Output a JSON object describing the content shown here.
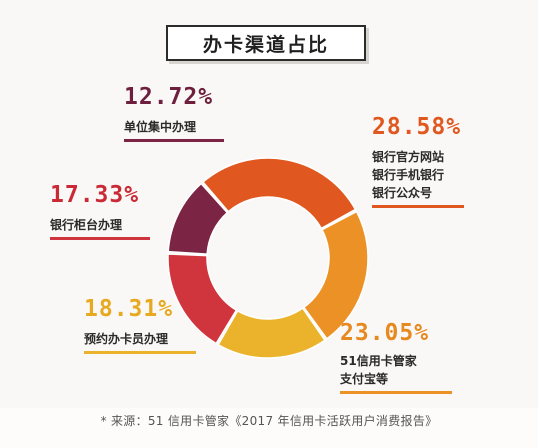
{
  "chart_data": {
    "type": "pie",
    "title": "办卡渠道占比",
    "slices": [
      {
        "value_label": "28.58%",
        "value": 28.58,
        "lines": [
          "银行官方网站",
          "银行手机银行",
          "银行公众号"
        ],
        "color": "#e0581f",
        "text_color": "#e0581f"
      },
      {
        "value_label": "23.05%",
        "value": 23.05,
        "lines": [
          "51信用卡管家",
          "支付宝等"
        ],
        "color": "#ec9126",
        "text_color": "#e6891f"
      },
      {
        "value_label": "18.31%",
        "value": 18.31,
        "lines": [
          "预约办卡员办理"
        ],
        "color": "#ebb32c",
        "text_color": "#e6a91f"
      },
      {
        "value_label": "17.33%",
        "value": 17.33,
        "lines": [
          "银行柜台办理"
        ],
        "color": "#d0353e",
        "text_color": "#c92a36"
      },
      {
        "value_label": "12.72%",
        "value": 12.72,
        "lines": [
          "单位集中办理"
        ],
        "color": "#7b2444",
        "text_color": "#6e1f3d"
      }
    ]
  },
  "source": "* 来源：51 信用卡管家《2017 年信用卡活跃用户消费报告》"
}
